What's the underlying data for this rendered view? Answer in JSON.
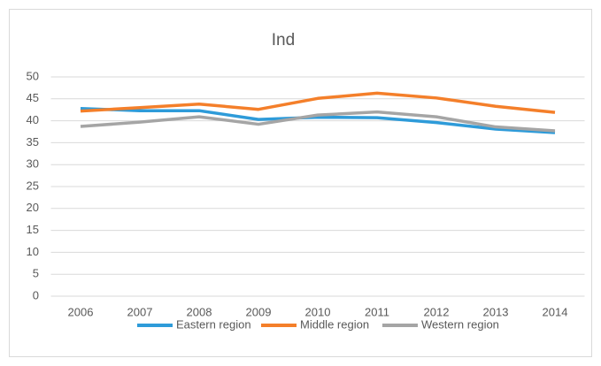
{
  "chart_data": {
    "type": "line",
    "title": "Ind",
    "categories": [
      "2006",
      "2007",
      "2008",
      "2009",
      "2010",
      "2011",
      "2012",
      "2013",
      "2014"
    ],
    "series": [
      {
        "name": "Eastern region",
        "color": "#2e9bd9",
        "values": [
          42.8,
          42.3,
          42.3,
          40.3,
          40.8,
          40.7,
          39.6,
          38.1,
          37.3
        ]
      },
      {
        "name": "Middle region",
        "color": "#f47f2a",
        "values": [
          42.2,
          43.0,
          43.8,
          42.6,
          45.1,
          46.3,
          45.2,
          43.3,
          41.9
        ]
      },
      {
        "name": "Western region",
        "color": "#a5a5a5",
        "values": [
          38.7,
          39.7,
          40.9,
          39.2,
          41.3,
          42.0,
          40.9,
          38.6,
          37.7
        ]
      }
    ],
    "ylim": [
      0,
      50
    ],
    "yticks": [
      0,
      5,
      10,
      15,
      20,
      25,
      30,
      35,
      40,
      45,
      50
    ],
    "grid": true,
    "legend": "bottom"
  }
}
